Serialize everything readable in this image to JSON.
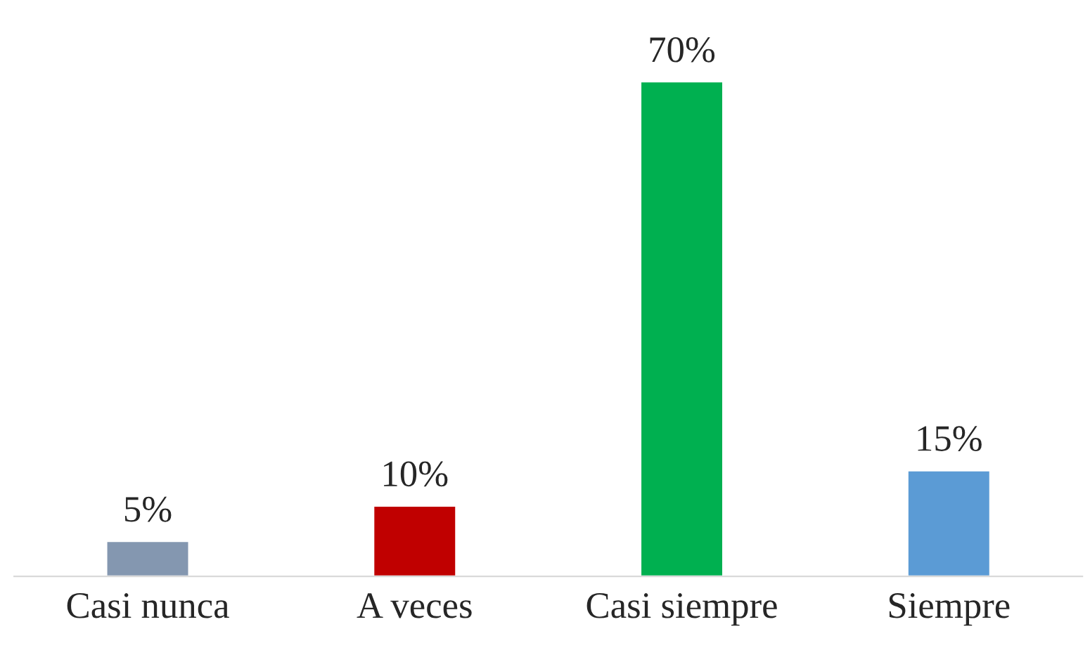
{
  "chart_data": {
    "type": "bar",
    "categories": [
      "Casi nunca",
      "A veces",
      "Casi siempre",
      "Siempre"
    ],
    "values": [
      5,
      10,
      70,
      15
    ],
    "colors": [
      "#8497b0",
      "#c00000",
      "#00b050",
      "#5b9bd5"
    ],
    "value_labels": [
      "5%",
      "10%",
      "70%",
      "15%"
    ],
    "grid": false,
    "legend": false
  }
}
